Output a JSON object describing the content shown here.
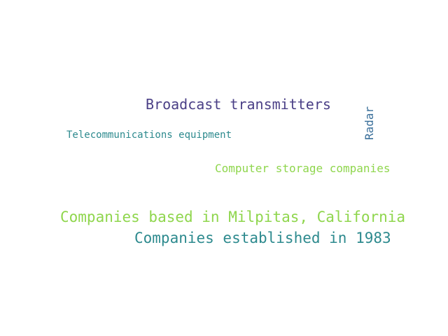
{
  "words": {
    "broadcast": {
      "text": "Broadcast transmitters",
      "color": "#4a3f86"
    },
    "telecom": {
      "text": "Telecommunications equipment",
      "color": "#2d8a8e"
    },
    "radar": {
      "text": "Radar",
      "color": "#3a6f9a"
    },
    "storage": {
      "text": "Computer storage companies",
      "color": "#8fd64d"
    },
    "milpitas": {
      "text": "Companies based in Milpitas, California",
      "color": "#8fd64d"
    },
    "est1983": {
      "text": "Companies established in 1983",
      "color": "#2d8a8e"
    }
  }
}
